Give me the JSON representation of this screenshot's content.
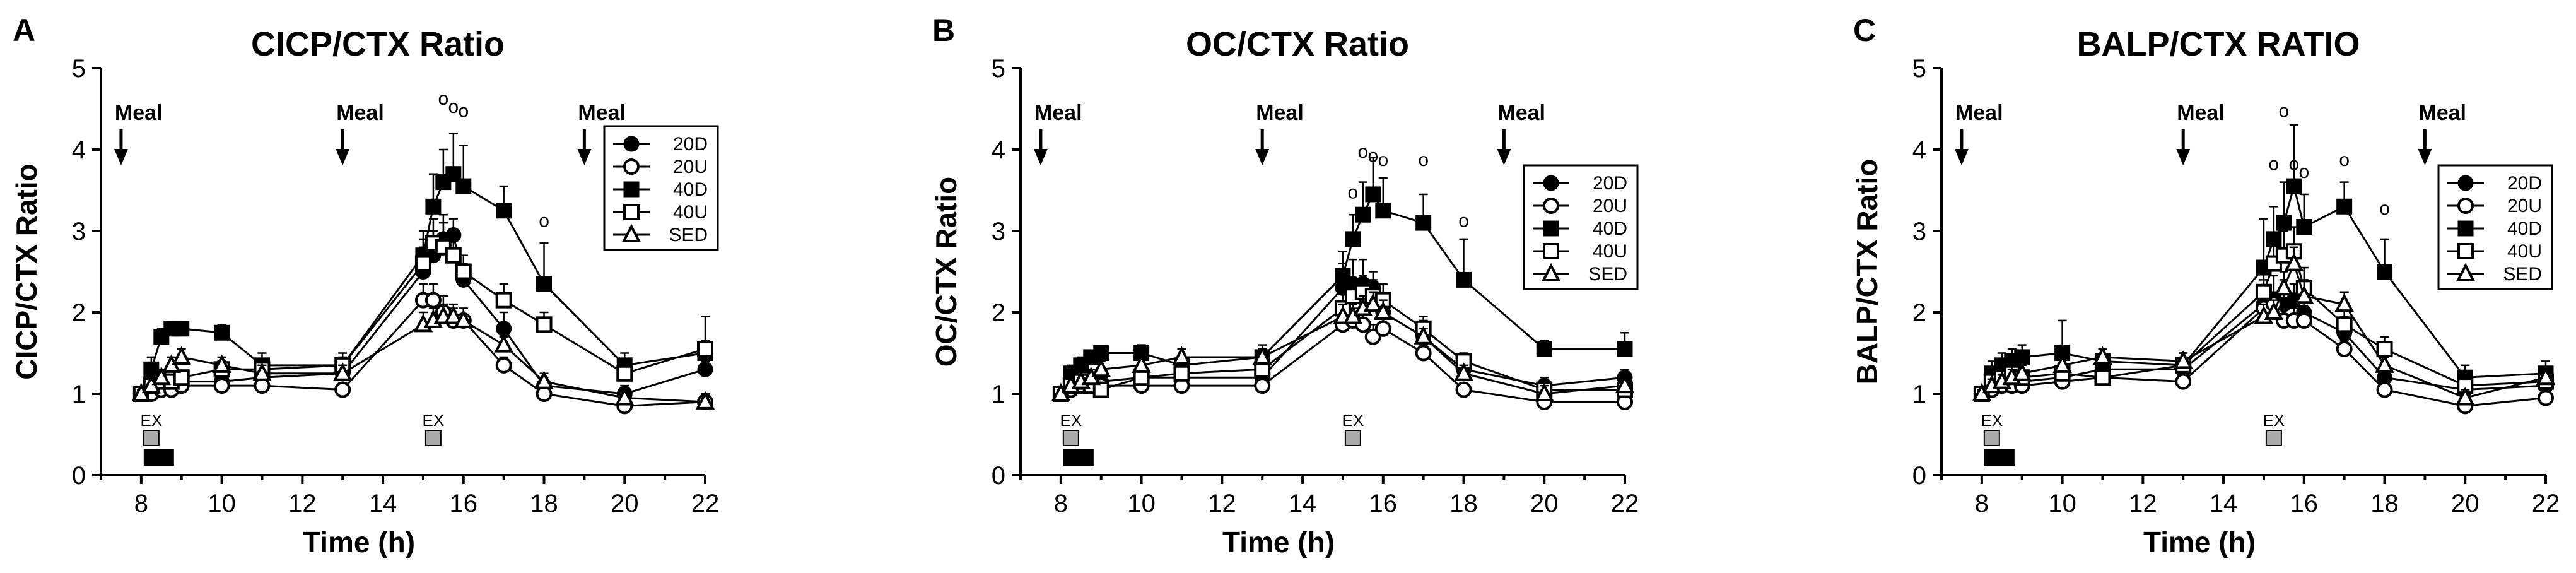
{
  "chart_data": [
    {
      "type": "line",
      "panel_label": "A",
      "title": "CICP/CTX Ratio",
      "xlabel": "Time (h)",
      "ylabel": "CICP/CTX Ratio",
      "xlim": [
        7,
        22
      ],
      "ylim": [
        0,
        5
      ],
      "x_ticks": [
        "8",
        "10",
        "12",
        "14",
        "16",
        "18",
        "20",
        "22"
      ],
      "y_ticks": [
        "0",
        "1",
        "2",
        "3",
        "4",
        "5"
      ],
      "meal_label": "Meal",
      "meals": [
        7.5,
        13,
        19
      ],
      "ex_label": "EX",
      "ex_times": [
        8.25,
        15.25
      ],
      "sig_symbol": "o",
      "sig_points": [
        {
          "x": 15.5,
          "y": 4.55
        },
        {
          "x": 15.75,
          "y": 4.45
        },
        {
          "x": 16,
          "y": 4.4
        },
        {
          "x": 18,
          "y": 3.05
        }
      ],
      "legend": [
        "20D",
        "20U",
        "40D",
        "40U",
        "SED"
      ],
      "series": [
        {
          "name": "20D",
          "marker": "circle-filled",
          "x": [
            8,
            8.25,
            8.5,
            8.75,
            9,
            10,
            11,
            13,
            15,
            15.25,
            15.5,
            15.75,
            16,
            17,
            18,
            20,
            22
          ],
          "y": [
            1.0,
            1.05,
            1.1,
            1.15,
            1.15,
            1.15,
            1.2,
            1.25,
            2.5,
            2.7,
            2.9,
            2.95,
            2.4,
            1.8,
            1.1,
            1.0,
            1.3
          ],
          "err": [
            0.05,
            0.05,
            0.05,
            0.08,
            0.08,
            0.08,
            0.08,
            0.1,
            0.3,
            0.3,
            0.3,
            0.2,
            0.2,
            0.2,
            0.1,
            0.1,
            0.1
          ]
        },
        {
          "name": "20U",
          "marker": "circle-open",
          "x": [
            8,
            8.25,
            8.5,
            8.75,
            9,
            10,
            11,
            13,
            15,
            15.25,
            15.5,
            15.75,
            16,
            17,
            18,
            20,
            22
          ],
          "y": [
            1.0,
            1.0,
            1.05,
            1.05,
            1.1,
            1.1,
            1.1,
            1.05,
            2.15,
            2.15,
            2.0,
            1.9,
            1.9,
            1.35,
            1.0,
            0.85,
            0.9
          ],
          "err": [
            0.05,
            0.05,
            0.05,
            0.05,
            0.05,
            0.08,
            0.08,
            0.08,
            0.2,
            0.2,
            0.2,
            0.15,
            0.15,
            0.1,
            0.08,
            0.08,
            0.08
          ]
        },
        {
          "name": "40D",
          "marker": "square-filled",
          "x": [
            8,
            8.25,
            8.5,
            8.75,
            9,
            10,
            11,
            13,
            15,
            15.25,
            15.5,
            15.75,
            16,
            17,
            18,
            20,
            22
          ],
          "y": [
            1.0,
            1.3,
            1.7,
            1.8,
            1.8,
            1.75,
            1.35,
            1.35,
            2.7,
            3.3,
            3.6,
            3.7,
            3.55,
            3.25,
            2.35,
            1.35,
            1.5
          ],
          "err": [
            0.05,
            0.15,
            0.1,
            0.08,
            0.08,
            0.1,
            0.15,
            0.15,
            0.3,
            0.4,
            0.4,
            0.5,
            0.5,
            0.3,
            0.5,
            0.15,
            0.45
          ]
        },
        {
          "name": "40U",
          "marker": "square-open",
          "x": [
            8,
            8.25,
            8.5,
            8.75,
            9,
            10,
            11,
            13,
            15,
            15.25,
            15.5,
            15.75,
            16,
            17,
            18,
            20,
            22
          ],
          "y": [
            1.0,
            1.1,
            1.15,
            1.15,
            1.2,
            1.3,
            1.3,
            1.35,
            2.6,
            2.85,
            2.8,
            2.7,
            2.5,
            2.15,
            1.85,
            1.25,
            1.55
          ],
          "err": [
            0.05,
            0.08,
            0.08,
            0.08,
            0.08,
            0.1,
            0.1,
            0.1,
            0.3,
            0.3,
            0.3,
            0.3,
            0.2,
            0.2,
            0.15,
            0.1,
            0.1
          ]
        },
        {
          "name": "SED",
          "marker": "triangle-open",
          "x": [
            8,
            8.25,
            8.5,
            8.75,
            9,
            10,
            11,
            13,
            15,
            15.25,
            15.5,
            15.75,
            16,
            17,
            18,
            20,
            22
          ],
          "y": [
            1.0,
            1.1,
            1.2,
            1.35,
            1.45,
            1.35,
            1.25,
            1.25,
            1.85,
            1.9,
            1.95,
            1.95,
            1.9,
            1.6,
            1.15,
            0.95,
            0.9
          ],
          "err": [
            0.05,
            0.08,
            0.1,
            0.1,
            0.1,
            0.1,
            0.1,
            0.1,
            0.15,
            0.15,
            0.15,
            0.15,
            0.15,
            0.1,
            0.1,
            0.1,
            0.1
          ]
        }
      ]
    },
    {
      "type": "line",
      "panel_label": "B",
      "title": "OC/CTX Ratio",
      "xlabel": "Time (h)",
      "ylabel": "OC/CTX Ratio",
      "xlim": [
        7,
        22
      ],
      "ylim": [
        0,
        5
      ],
      "x_ticks": [
        "8",
        "10",
        "12",
        "14",
        "16",
        "18",
        "20",
        "22"
      ],
      "y_ticks": [
        "0",
        "1",
        "2",
        "3",
        "4",
        "5"
      ],
      "meal_label": "Meal",
      "meals": [
        7.5,
        13,
        19
      ],
      "ex_label": "EX",
      "ex_times": [
        8.25,
        15.25
      ],
      "sig_symbol": "o",
      "sig_points": [
        {
          "x": 15.25,
          "y": 3.4
        },
        {
          "x": 15.5,
          "y": 3.9
        },
        {
          "x": 15.75,
          "y": 3.85
        },
        {
          "x": 16,
          "y": 3.8
        },
        {
          "x": 17,
          "y": 3.8
        },
        {
          "x": 18,
          "y": 3.05
        }
      ],
      "legend": [
        "20D",
        "20U",
        "40D",
        "40U",
        "SED"
      ],
      "series": [
        {
          "name": "20D",
          "marker": "circle-filled",
          "x": [
            8,
            8.25,
            8.5,
            8.75,
            9,
            10,
            11,
            13,
            15,
            15.25,
            15.5,
            15.75,
            16,
            17,
            18,
            20,
            22
          ],
          "y": [
            1.0,
            1.05,
            1.1,
            1.15,
            1.15,
            1.2,
            1.2,
            1.2,
            2.3,
            2.35,
            2.35,
            2.3,
            2.0,
            1.7,
            1.3,
            1.1,
            1.2
          ],
          "err": [
            0.05,
            0.05,
            0.05,
            0.08,
            0.08,
            0.08,
            0.08,
            0.1,
            0.3,
            0.3,
            0.3,
            0.2,
            0.2,
            0.2,
            0.1,
            0.1,
            0.1
          ]
        },
        {
          "name": "20U",
          "marker": "circle-open",
          "x": [
            8,
            8.25,
            8.5,
            8.75,
            9,
            10,
            11,
            13,
            15,
            15.25,
            15.5,
            15.75,
            16,
            17,
            18,
            20,
            22
          ],
          "y": [
            1.0,
            1.05,
            1.1,
            1.1,
            1.1,
            1.1,
            1.1,
            1.1,
            1.85,
            1.9,
            1.85,
            1.7,
            1.8,
            1.5,
            1.05,
            0.9,
            0.9
          ],
          "err": [
            0.05,
            0.05,
            0.05,
            0.05,
            0.05,
            0.08,
            0.08,
            0.08,
            0.15,
            0.15,
            0.15,
            0.15,
            0.15,
            0.1,
            0.08,
            0.08,
            0.08
          ]
        },
        {
          "name": "40D",
          "marker": "square-filled",
          "x": [
            8,
            8.25,
            8.5,
            8.75,
            9,
            10,
            11,
            13,
            15,
            15.25,
            15.5,
            15.75,
            16,
            17,
            18,
            20,
            22
          ],
          "y": [
            1.0,
            1.25,
            1.35,
            1.45,
            1.5,
            1.5,
            1.35,
            1.45,
            2.45,
            2.9,
            3.2,
            3.45,
            3.25,
            3.1,
            2.4,
            1.55,
            1.55
          ],
          "err": [
            0.05,
            0.1,
            0.1,
            0.08,
            0.08,
            0.1,
            0.1,
            0.15,
            0.3,
            0.3,
            0.4,
            0.45,
            0.4,
            0.35,
            0.5,
            0.1,
            0.2
          ]
        },
        {
          "name": "40U",
          "marker": "square-open",
          "x": [
            8,
            8.25,
            8.5,
            8.75,
            9,
            10,
            11,
            13,
            15,
            15.25,
            15.5,
            15.75,
            16,
            17,
            18,
            20,
            22
          ],
          "y": [
            1.0,
            1.1,
            1.15,
            1.1,
            1.05,
            1.2,
            1.25,
            1.3,
            2.05,
            2.2,
            2.25,
            2.2,
            2.15,
            1.8,
            1.4,
            1.05,
            1.05
          ],
          "err": [
            0.05,
            0.08,
            0.08,
            0.08,
            0.08,
            0.1,
            0.1,
            0.1,
            0.2,
            0.2,
            0.2,
            0.2,
            0.2,
            0.15,
            0.1,
            0.1,
            0.1
          ]
        },
        {
          "name": "SED",
          "marker": "triangle-open",
          "x": [
            8,
            8.25,
            8.5,
            8.75,
            9,
            10,
            11,
            13,
            15,
            15.25,
            15.5,
            15.75,
            16,
            17,
            18,
            20,
            22
          ],
          "y": [
            1.0,
            1.1,
            1.15,
            1.2,
            1.3,
            1.35,
            1.45,
            1.45,
            1.95,
            1.95,
            2.05,
            2.1,
            2.0,
            1.7,
            1.25,
            1.0,
            1.1
          ],
          "err": [
            0.05,
            0.08,
            0.08,
            0.1,
            0.1,
            0.1,
            0.1,
            0.1,
            0.15,
            0.15,
            0.15,
            0.15,
            0.15,
            0.1,
            0.1,
            0.1,
            0.1
          ]
        }
      ]
    },
    {
      "type": "line",
      "panel_label": "C",
      "title": "BALP/CTX RATIO",
      "xlabel": "Time (h)",
      "ylabel": "BALP/CTX Ratio",
      "xlim": [
        7,
        22
      ],
      "ylim": [
        0,
        5
      ],
      "x_ticks": [
        "8",
        "10",
        "12",
        "14",
        "16",
        "18",
        "20",
        "22"
      ],
      "y_ticks": [
        "0",
        "1",
        "2",
        "3",
        "4",
        "5"
      ],
      "meal_label": "Meal",
      "meals": [
        7.5,
        13,
        19
      ],
      "ex_label": "EX",
      "ex_times": [
        8.25,
        15.25
      ],
      "sig_symbol": "o",
      "sig_points": [
        {
          "x": 15.25,
          "y": 3.75
        },
        {
          "x": 15.5,
          "y": 4.4
        },
        {
          "x": 15.75,
          "y": 3.75
        },
        {
          "x": 16,
          "y": 3.65
        },
        {
          "x": 17,
          "y": 3.8
        },
        {
          "x": 18,
          "y": 3.2
        }
      ],
      "legend": [
        "20D",
        "20U",
        "40D",
        "40U",
        "SED"
      ],
      "series": [
        {
          "name": "20D",
          "marker": "circle-filled",
          "x": [
            8,
            8.25,
            8.5,
            8.75,
            9,
            10,
            11,
            13,
            15,
            15.25,
            15.5,
            15.75,
            16,
            17,
            18,
            20,
            22
          ],
          "y": [
            1.0,
            1.05,
            1.1,
            1.15,
            1.15,
            1.2,
            1.3,
            1.3,
            2.1,
            2.15,
            2.1,
            2.15,
            2.0,
            1.75,
            1.2,
            1.05,
            1.1
          ],
          "err": [
            0.05,
            0.05,
            0.05,
            0.08,
            0.08,
            0.08,
            0.08,
            0.1,
            0.3,
            0.3,
            0.3,
            0.2,
            0.2,
            0.2,
            0.1,
            0.1,
            0.1
          ]
        },
        {
          "name": "20U",
          "marker": "circle-open",
          "x": [
            8,
            8.25,
            8.5,
            8.75,
            9,
            10,
            11,
            13,
            15,
            15.25,
            15.5,
            15.75,
            16,
            17,
            18,
            20,
            22
          ],
          "y": [
            1.0,
            1.05,
            1.1,
            1.1,
            1.1,
            1.15,
            1.2,
            1.15,
            2.05,
            2.1,
            1.9,
            1.9,
            1.9,
            1.55,
            1.05,
            0.85,
            0.95
          ],
          "err": [
            0.05,
            0.05,
            0.05,
            0.05,
            0.05,
            0.08,
            0.08,
            0.08,
            0.15,
            0.15,
            0.15,
            0.15,
            0.15,
            0.1,
            0.08,
            0.08,
            0.08
          ]
        },
        {
          "name": "40D",
          "marker": "square-filled",
          "x": [
            8,
            8.25,
            8.5,
            8.75,
            9,
            10,
            11,
            13,
            15,
            15.25,
            15.5,
            15.75,
            16,
            17,
            18,
            20,
            22
          ],
          "y": [
            1.0,
            1.25,
            1.35,
            1.4,
            1.45,
            1.5,
            1.4,
            1.35,
            2.55,
            2.9,
            3.1,
            3.55,
            3.05,
            3.3,
            2.5,
            1.2,
            1.25
          ],
          "err": [
            0.05,
            0.15,
            0.15,
            0.15,
            0.15,
            0.4,
            0.15,
            0.15,
            0.6,
            0.4,
            0.5,
            0.75,
            0.4,
            0.3,
            0.4,
            0.15,
            0.15
          ]
        },
        {
          "name": "40U",
          "marker": "square-open",
          "x": [
            8,
            8.25,
            8.5,
            8.75,
            9,
            10,
            11,
            13,
            15,
            15.25,
            15.5,
            15.75,
            16,
            17,
            18,
            20,
            22
          ],
          "y": [
            1.0,
            1.15,
            1.2,
            1.25,
            1.2,
            1.25,
            1.2,
            1.35,
            2.25,
            2.6,
            2.7,
            2.75,
            2.3,
            1.85,
            1.55,
            1.1,
            1.15
          ],
          "err": [
            0.05,
            0.08,
            0.08,
            0.08,
            0.08,
            0.1,
            0.1,
            0.1,
            0.3,
            0.3,
            0.3,
            0.3,
            0.25,
            0.2,
            0.15,
            0.1,
            0.1
          ]
        },
        {
          "name": "SED",
          "marker": "triangle-open",
          "x": [
            8,
            8.25,
            8.5,
            8.75,
            9,
            10,
            11,
            13,
            15,
            15.25,
            15.5,
            15.75,
            16,
            17,
            18,
            20,
            22
          ],
          "y": [
            1.0,
            1.1,
            1.15,
            1.2,
            1.25,
            1.35,
            1.45,
            1.4,
            1.95,
            2.0,
            2.3,
            2.6,
            2.2,
            2.1,
            1.35,
            0.95,
            1.2
          ],
          "err": [
            0.05,
            0.08,
            0.08,
            0.1,
            0.1,
            0.1,
            0.1,
            0.1,
            0.15,
            0.15,
            0.2,
            0.2,
            0.2,
            0.15,
            0.1,
            0.1,
            0.1
          ]
        }
      ]
    }
  ]
}
